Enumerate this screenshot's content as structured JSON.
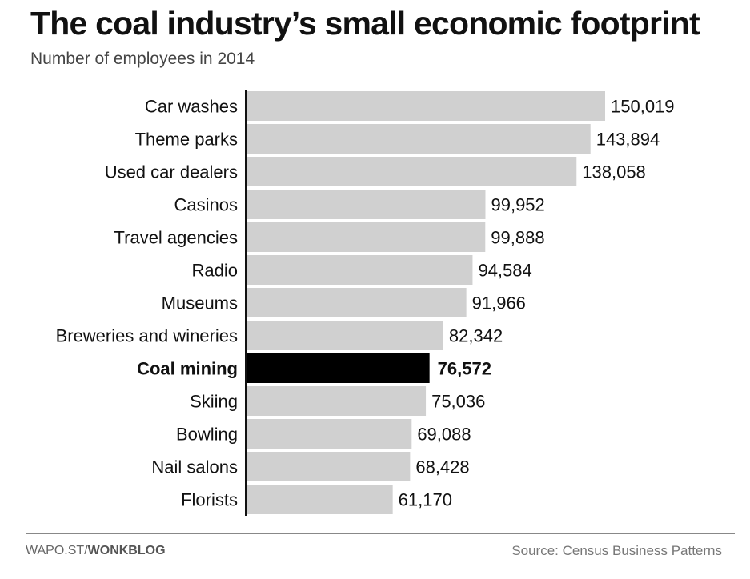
{
  "chart_data": {
    "type": "bar",
    "orientation": "horizontal",
    "title": "The coal industry’s small economic footprint",
    "subtitle": "Number of employees in 2014",
    "categories": [
      "Car washes",
      "Theme parks",
      "Used car dealers",
      "Casinos",
      "Travel agencies",
      "Radio",
      "Museums",
      "Breweries and wineries",
      "Coal mining",
      "Skiing",
      "Bowling",
      "Nail salons",
      "Florists"
    ],
    "values": [
      150019,
      143894,
      138058,
      99952,
      99888,
      94584,
      91966,
      82342,
      76572,
      75036,
      69088,
      68428,
      61170
    ],
    "value_labels": [
      "150,019",
      "143,894",
      "138,058",
      "99,952",
      "99,888",
      "94,584",
      "91,966",
      "82,342",
      "76,572",
      "75,036",
      "69,088",
      "68,428",
      "61,170"
    ],
    "highlight": "Coal mining",
    "colors": {
      "bar": "#d0d0d0",
      "highlight": "#000000"
    },
    "xlim": [
      0,
      150019
    ],
    "grid": false,
    "legend": "none"
  },
  "footer": {
    "credit_prefix": "WAPO.ST/",
    "credit_brand": "WONKBLOG",
    "source": "Source: Census Business Patterns"
  }
}
